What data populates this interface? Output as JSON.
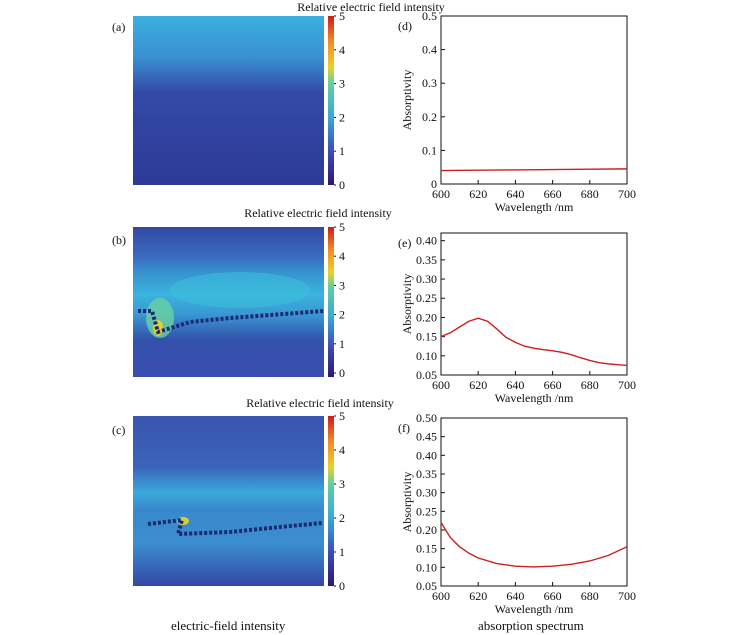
{
  "captions": {
    "left": "electric-field intensity",
    "right": "absorption spectrum"
  },
  "colormap_title": "Relative electric field intensity",
  "colorbar_ticks": [
    "0",
    "1",
    "2",
    "3",
    "4",
    "5"
  ],
  "colors": {
    "curve": "#cc1f1f",
    "field_low": "#2b3a8c",
    "field_mid": "#3aaee0",
    "field_high": "#f0d020",
    "field_max": "#c81e1e"
  },
  "panels": {
    "a": {
      "label": "(a)"
    },
    "b": {
      "label": "(b)"
    },
    "c": {
      "label": "(c)"
    }
  },
  "chart_data": [
    {
      "id": "d",
      "label": "(d)",
      "type": "line",
      "xlabel": "Wavelength /nm",
      "ylabel": "Absorptivity",
      "xlim": [
        600,
        700
      ],
      "ylim": [
        0,
        0.5
      ],
      "xticks": [
        "600",
        "620",
        "640",
        "660",
        "680",
        "700"
      ],
      "yticks": [
        "0",
        "0.1",
        "0.2",
        "0.3",
        "0.4",
        "0.5"
      ],
      "series": [
        {
          "x": [
            600,
            620,
            640,
            660,
            680,
            700
          ],
          "y": [
            0.04,
            0.041,
            0.042,
            0.043,
            0.044,
            0.045
          ]
        }
      ]
    },
    {
      "id": "e",
      "label": "(e)",
      "type": "line",
      "xlabel": "Wavelength /nm",
      "ylabel": "Absorptivity",
      "xlim": [
        600,
        700
      ],
      "ylim": [
        0.05,
        0.42
      ],
      "xticks": [
        "600",
        "620",
        "640",
        "660",
        "680",
        "700"
      ],
      "yticks": [
        "0.05",
        "0.10",
        "0.15",
        "0.20",
        "0.25",
        "0.30",
        "0.35",
        "0.40"
      ],
      "series": [
        {
          "x": [
            600,
            605,
            610,
            615,
            620,
            625,
            630,
            635,
            640,
            645,
            650,
            655,
            660,
            665,
            670,
            675,
            680,
            685,
            690,
            695,
            700
          ],
          "y": [
            0.15,
            0.16,
            0.175,
            0.19,
            0.198,
            0.19,
            0.17,
            0.148,
            0.135,
            0.125,
            0.12,
            0.116,
            0.113,
            0.109,
            0.103,
            0.095,
            0.088,
            0.082,
            0.079,
            0.077,
            0.075
          ]
        }
      ]
    },
    {
      "id": "f",
      "label": "(f)",
      "type": "line",
      "xlabel": "Wavelength /nm",
      "ylabel": "Absorptivity",
      "xlim": [
        600,
        700
      ],
      "ylim": [
        0.05,
        0.5
      ],
      "xticks": [
        "600",
        "620",
        "640",
        "660",
        "680",
        "700"
      ],
      "yticks": [
        "0.05",
        "0.10",
        "0.15",
        "0.20",
        "0.25",
        "0.30",
        "0.35",
        "0.40",
        "0.45",
        "0.50"
      ],
      "series": [
        {
          "x": [
            600,
            605,
            610,
            615,
            620,
            630,
            640,
            650,
            660,
            670,
            680,
            690,
            700
          ],
          "y": [
            0.22,
            0.18,
            0.155,
            0.138,
            0.125,
            0.11,
            0.103,
            0.101,
            0.103,
            0.108,
            0.117,
            0.132,
            0.155
          ]
        }
      ]
    }
  ]
}
